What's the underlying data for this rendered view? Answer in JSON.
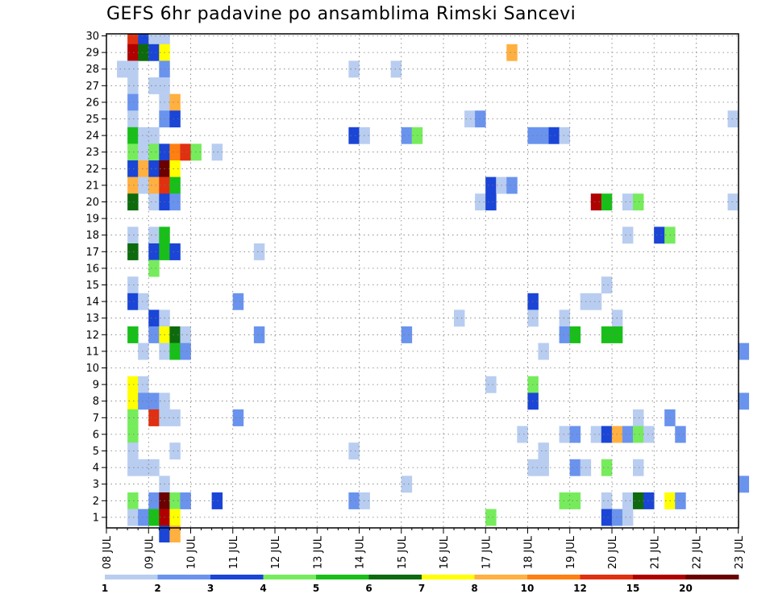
{
  "chart_data": {
    "type": "heatmap",
    "title": "GEFS 6hr padavine po ansamblima Rimski Sancevi",
    "x_ticks": [
      "08 JUL",
      "09 JUL",
      "10 JUL",
      "11 JUL",
      "12 JUL",
      "13 JUL",
      "14 JUL",
      "15 JUL",
      "16 JUL",
      "17 JUL",
      "18 JUL",
      "19 JUL",
      "20 JUL",
      "21 JUL",
      "22 JUL",
      "23 JUL"
    ],
    "y_ticks": [
      "1",
      "2",
      "3",
      "4",
      "5",
      "6",
      "7",
      "8",
      "9",
      "10",
      "11",
      "12",
      "13",
      "14",
      "15",
      "16",
      "17",
      "18",
      "19",
      "20",
      "21",
      "22",
      "23",
      "24",
      "25",
      "26",
      "27",
      "28",
      "29",
      "30"
    ],
    "x_range": [
      "08 JUL",
      "23 JUL"
    ],
    "y_range": [
      0,
      30
    ],
    "steps_per_day": 4,
    "grid": true,
    "legend": {
      "placement": "bottom",
      "levels": [
        "1",
        "2",
        "3",
        "4",
        "5",
        "6",
        "7",
        "8",
        "10",
        "12",
        "15",
        "20"
      ],
      "colors": [
        "#b8cdf0",
        "#6a93ee",
        "#1a45d6",
        "#76ec5c",
        "#19bf19",
        "#0d6b0d",
        "#ffff00",
        "#ffb040",
        "#ff8010",
        "#e03010",
        "#b00000",
        "#6a0000"
      ]
    },
    "cells": [
      [
        30,
        2,
        9
      ],
      [
        30,
        3,
        2
      ],
      [
        30,
        4,
        0
      ],
      [
        30,
        5,
        0
      ],
      [
        29,
        2,
        10
      ],
      [
        29,
        3,
        5
      ],
      [
        29,
        4,
        2
      ],
      [
        29,
        5,
        6
      ],
      [
        29,
        38,
        7
      ],
      [
        28,
        1,
        0
      ],
      [
        28,
        2,
        0
      ],
      [
        28,
        5,
        1
      ],
      [
        28,
        23,
        0
      ],
      [
        28,
        27,
        0
      ],
      [
        27,
        2,
        0
      ],
      [
        27,
        4,
        0
      ],
      [
        27,
        5,
        0
      ],
      [
        26,
        2,
        1
      ],
      [
        26,
        5,
        0
      ],
      [
        26,
        6,
        7
      ],
      [
        25,
        2,
        0
      ],
      [
        25,
        5,
        1
      ],
      [
        25,
        6,
        2
      ],
      [
        25,
        34,
        0
      ],
      [
        25,
        35,
        1
      ],
      [
        25,
        59,
        0
      ],
      [
        24,
        2,
        4
      ],
      [
        24,
        3,
        0
      ],
      [
        24,
        4,
        0
      ],
      [
        24,
        23,
        2
      ],
      [
        24,
        24,
        0
      ],
      [
        24,
        28,
        1
      ],
      [
        24,
        29,
        3
      ],
      [
        24,
        40,
        1
      ],
      [
        24,
        41,
        1
      ],
      [
        24,
        42,
        2
      ],
      [
        24,
        43,
        0
      ],
      [
        23,
        2,
        3
      ],
      [
        23,
        3,
        0
      ],
      [
        23,
        4,
        3
      ],
      [
        23,
        5,
        2
      ],
      [
        23,
        6,
        8
      ],
      [
        23,
        7,
        9
      ],
      [
        23,
        8,
        3
      ],
      [
        23,
        10,
        0
      ],
      [
        22,
        2,
        2
      ],
      [
        22,
        3,
        7
      ],
      [
        22,
        4,
        2
      ],
      [
        22,
        5,
        11
      ],
      [
        22,
        6,
        6
      ],
      [
        21,
        2,
        7
      ],
      [
        21,
        3,
        0
      ],
      [
        21,
        4,
        7
      ],
      [
        21,
        5,
        9
      ],
      [
        21,
        6,
        4
      ],
      [
        21,
        36,
        2
      ],
      [
        21,
        37,
        0
      ],
      [
        21,
        38,
        1
      ],
      [
        20,
        2,
        5
      ],
      [
        20,
        4,
        0
      ],
      [
        20,
        5,
        2
      ],
      [
        20,
        6,
        1
      ],
      [
        20,
        35,
        0
      ],
      [
        20,
        36,
        2
      ],
      [
        20,
        46,
        10
      ],
      [
        20,
        47,
        4
      ],
      [
        20,
        49,
        0
      ],
      [
        20,
        50,
        3
      ],
      [
        20,
        59,
        0
      ],
      [
        18,
        2,
        0
      ],
      [
        18,
        4,
        0
      ],
      [
        18,
        5,
        4
      ],
      [
        18,
        49,
        0
      ],
      [
        18,
        52,
        2
      ],
      [
        18,
        53,
        3
      ],
      [
        17,
        2,
        5
      ],
      [
        17,
        4,
        2
      ],
      [
        17,
        5,
        4
      ],
      [
        17,
        6,
        2
      ],
      [
        17,
        14,
        0
      ],
      [
        16,
        4,
        3
      ],
      [
        15,
        2,
        0
      ],
      [
        15,
        47,
        0
      ],
      [
        14,
        2,
        2
      ],
      [
        14,
        3,
        0
      ],
      [
        14,
        12,
        1
      ],
      [
        14,
        40,
        2
      ],
      [
        14,
        45,
        0
      ],
      [
        14,
        46,
        0
      ],
      [
        13,
        4,
        2
      ],
      [
        13,
        5,
        0
      ],
      [
        13,
        33,
        0
      ],
      [
        13,
        40,
        0
      ],
      [
        13,
        43,
        0
      ],
      [
        13,
        48,
        0
      ],
      [
        12,
        2,
        4
      ],
      [
        12,
        4,
        1
      ],
      [
        12,
        5,
        6
      ],
      [
        12,
        6,
        5
      ],
      [
        12,
        7,
        0
      ],
      [
        12,
        14,
        1
      ],
      [
        12,
        28,
        1
      ],
      [
        12,
        43,
        1
      ],
      [
        12,
        44,
        4
      ],
      [
        12,
        47,
        4
      ],
      [
        12,
        48,
        4
      ],
      [
        11,
        3,
        0
      ],
      [
        11,
        5,
        0
      ],
      [
        11,
        6,
        4
      ],
      [
        11,
        7,
        1
      ],
      [
        11,
        41,
        0
      ],
      [
        11,
        60,
        1
      ],
      [
        9,
        2,
        6
      ],
      [
        9,
        3,
        0
      ],
      [
        9,
        36,
        0
      ],
      [
        9,
        40,
        3
      ],
      [
        8,
        2,
        6
      ],
      [
        8,
        3,
        1
      ],
      [
        8,
        4,
        1
      ],
      [
        8,
        5,
        0
      ],
      [
        8,
        40,
        2
      ],
      [
        8,
        60,
        1
      ],
      [
        7,
        2,
        3
      ],
      [
        7,
        4,
        9
      ],
      [
        7,
        5,
        0
      ],
      [
        7,
        6,
        0
      ],
      [
        7,
        12,
        1
      ],
      [
        7,
        50,
        0
      ],
      [
        7,
        53,
        1
      ],
      [
        6,
        2,
        3
      ],
      [
        6,
        39,
        0
      ],
      [
        6,
        43,
        0
      ],
      [
        6,
        44,
        1
      ],
      [
        6,
        46,
        0
      ],
      [
        6,
        47,
        2
      ],
      [
        6,
        48,
        7
      ],
      [
        6,
        49,
        1
      ],
      [
        6,
        50,
        3
      ],
      [
        6,
        51,
        0
      ],
      [
        6,
        54,
        1
      ],
      [
        5,
        2,
        0
      ],
      [
        5,
        6,
        0
      ],
      [
        5,
        23,
        0
      ],
      [
        5,
        41,
        0
      ],
      [
        4,
        2,
        0
      ],
      [
        4,
        3,
        0
      ],
      [
        4,
        4,
        0
      ],
      [
        4,
        40,
        0
      ],
      [
        4,
        41,
        0
      ],
      [
        4,
        44,
        1
      ],
      [
        4,
        45,
        0
      ],
      [
        4,
        47,
        3
      ],
      [
        4,
        50,
        0
      ],
      [
        3,
        5,
        0
      ],
      [
        3,
        28,
        0
      ],
      [
        3,
        60,
        1
      ],
      [
        2,
        2,
        3
      ],
      [
        2,
        4,
        1
      ],
      [
        2,
        5,
        11
      ],
      [
        2,
        6,
        3
      ],
      [
        2,
        7,
        1
      ],
      [
        2,
        10,
        2
      ],
      [
        2,
        23,
        1
      ],
      [
        2,
        24,
        0
      ],
      [
        2,
        43,
        3
      ],
      [
        2,
        44,
        3
      ],
      [
        2,
        47,
        0
      ],
      [
        2,
        49,
        0
      ],
      [
        2,
        50,
        5
      ],
      [
        2,
        51,
        2
      ],
      [
        2,
        53,
        6
      ],
      [
        2,
        54,
        1
      ],
      [
        1,
        2,
        0
      ],
      [
        1,
        3,
        1
      ],
      [
        1,
        4,
        4
      ],
      [
        1,
        5,
        10
      ],
      [
        1,
        6,
        6
      ],
      [
        1,
        36,
        3
      ],
      [
        1,
        47,
        2
      ],
      [
        1,
        48,
        1
      ],
      [
        1,
        49,
        0
      ],
      [
        0,
        5,
        2
      ],
      [
        0,
        6,
        7
      ]
    ]
  }
}
